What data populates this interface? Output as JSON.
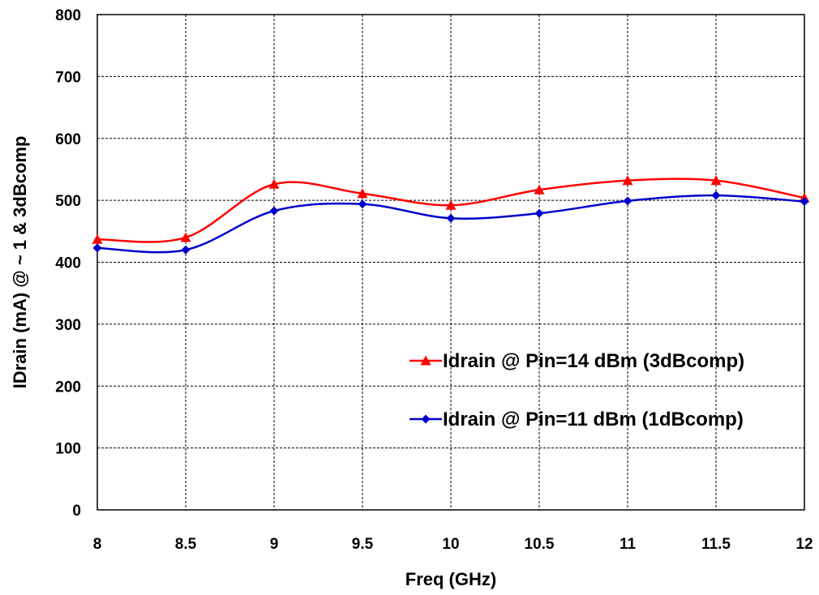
{
  "chart_data": {
    "type": "line",
    "title": "",
    "xlabel": "Freq (GHz)",
    "ylabel": "IDrain (mA) @ ~ 1 & 3dBcomp",
    "xlim": [
      8,
      12
    ],
    "ylim": [
      0,
      800
    ],
    "x_ticks": [
      "8",
      "8.5",
      "9",
      "9.5",
      "10",
      "10.5",
      "11",
      "11.5",
      "12"
    ],
    "y_ticks": [
      "0",
      "100",
      "200",
      "300",
      "400",
      "500",
      "600",
      "700",
      "800"
    ],
    "grid": true,
    "legend_position": "right",
    "x": [
      8,
      8.5,
      9,
      9.5,
      10,
      10.5,
      11,
      11.5,
      12
    ],
    "series": [
      {
        "name": "Idrain @ Pin=14 dBm (3dBcomp)",
        "color": "#ff0000",
        "marker": "triangle",
        "values": [
          437,
          440,
          526,
          511,
          492,
          517,
          532,
          532,
          504
        ]
      },
      {
        "name": "Idrain @ Pin=11 dBm (1dBcomp)",
        "color": "#0000cc",
        "marker": "diamond",
        "values": [
          423,
          420,
          483,
          494,
          471,
          479,
          499,
          508,
          498
        ]
      }
    ]
  }
}
